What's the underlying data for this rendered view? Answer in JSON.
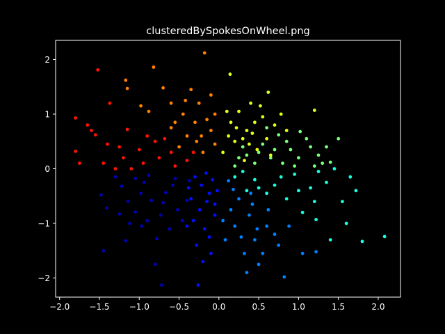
{
  "chart_data": {
    "type": "scatter",
    "title": "clusteredBySpokesOnWheel.png",
    "xlabel": "",
    "ylabel": "",
    "xlim": [
      -2.05,
      2.28
    ],
    "ylim": [
      -2.35,
      2.35
    ],
    "xticks": [
      -2.0,
      -1.5,
      -1.0,
      -0.5,
      0.0,
      0.5,
      1.0,
      1.5,
      2.0
    ],
    "xtick_labels": [
      "−2.0",
      "−1.5",
      "−1.0",
      "−0.5",
      "0.0",
      "0.5",
      "1.0",
      "1.5",
      "2.0"
    ],
    "yticks": [
      -2,
      -1,
      0,
      1,
      2
    ],
    "ytick_labels": [
      "−2",
      "−1",
      "0",
      "1",
      "2"
    ],
    "grid": false,
    "colormap": "jet",
    "cluster_count": 8,
    "point_count": 600,
    "background": "#000000",
    "foreground": "#ffffff",
    "series": [
      {
        "color": "#0000b4",
        "points": [
          [
            -0.94,
            -0.25
          ],
          [
            -0.85,
            -0.58
          ],
          [
            -1.22,
            -0.32
          ],
          [
            -0.67,
            -0.44
          ],
          [
            -0.4,
            -0.58
          ],
          [
            -0.73,
            -0.85
          ],
          [
            -1.05,
            -0.79
          ],
          [
            -0.55,
            -0.18
          ],
          [
            -0.97,
            -1.05
          ],
          [
            -1.41,
            -0.72
          ],
          [
            -0.62,
            -1.1
          ],
          [
            -0.88,
            -0.12
          ],
          [
            -1.14,
            -0.6
          ],
          [
            -0.46,
            -0.95
          ],
          [
            -0.78,
            -1.28
          ],
          [
            -1.3,
            -0.15
          ],
          [
            -0.98,
            -0.45
          ],
          [
            -0.58,
            -0.3
          ],
          [
            -1.12,
            -1.0
          ],
          [
            -0.7,
            -0.62
          ],
          [
            -1.45,
            -1.5
          ],
          [
            -1.17,
            -1.32
          ],
          [
            -0.72,
            -2.13
          ],
          [
            -0.8,
            -1.75
          ],
          [
            -0.37,
            -0.22
          ],
          [
            -1.05,
            -0.18
          ],
          [
            -1.25,
            -0.83
          ],
          [
            -1.48,
            -0.48
          ],
          [
            -0.9,
            -0.95
          ],
          [
            -0.52,
            -0.75
          ]
        ]
      },
      {
        "color": "#0010ff",
        "points": [
          [
            -0.3,
            -0.15
          ],
          [
            -0.12,
            -0.45
          ],
          [
            -0.24,
            -0.75
          ],
          [
            -0.08,
            -0.2
          ],
          [
            -0.35,
            -0.55
          ],
          [
            -0.18,
            -1.1
          ],
          [
            -0.05,
            -0.85
          ],
          [
            -0.28,
            -1.4
          ],
          [
            -0.15,
            -0.6
          ],
          [
            -0.22,
            -0.3
          ],
          [
            -0.4,
            -1.05
          ],
          [
            -0.1,
            -1.55
          ],
          [
            -0.02,
            -0.4
          ],
          [
            -0.32,
            -0.95
          ],
          [
            -0.2,
            -1.7
          ],
          [
            -0.26,
            -2.13
          ],
          [
            -0.12,
            -1.25
          ],
          [
            -0.05,
            -0.65
          ],
          [
            -0.38,
            -0.35
          ],
          [
            -0.16,
            -0.08
          ]
        ]
      },
      {
        "color": "#0080ff",
        "points": [
          [
            0.12,
            -0.22
          ],
          [
            0.25,
            -0.55
          ],
          [
            0.38,
            -0.85
          ],
          [
            0.2,
            -1.05
          ],
          [
            0.45,
            -1.3
          ],
          [
            0.6,
            -1.05
          ],
          [
            0.32,
            -1.55
          ],
          [
            0.5,
            -1.75
          ],
          [
            0.75,
            -1.4
          ],
          [
            0.82,
            -1.98
          ],
          [
            0.15,
            -0.75
          ],
          [
            0.4,
            -0.45
          ],
          [
            0.62,
            -0.75
          ],
          [
            0.28,
            -1.25
          ],
          [
            0.55,
            -1.55
          ],
          [
            0.05,
            -0.95
          ],
          [
            0.7,
            -1.2
          ],
          [
            0.35,
            -1.9
          ],
          [
            1.05,
            -1.55
          ],
          [
            1.22,
            -1.52
          ],
          [
            0.18,
            -0.38
          ],
          [
            0.48,
            -1.1
          ],
          [
            0.88,
            -1.05
          ],
          [
            0.08,
            -1.3
          ],
          [
            0.42,
            -0.65
          ]
        ]
      },
      {
        "color": "#15ffe1",
        "points": [
          [
            0.2,
            -0.15
          ],
          [
            0.45,
            -0.2
          ],
          [
            0.7,
            -0.3
          ],
          [
            0.95,
            -0.1
          ],
          [
            1.15,
            -0.35
          ],
          [
            1.35,
            -0.25
          ],
          [
            1.55,
            -0.6
          ],
          [
            1.72,
            -0.4
          ],
          [
            1.8,
            -1.33
          ],
          [
            2.08,
            -1.24
          ],
          [
            1.6,
            -1.0
          ],
          [
            1.4,
            -1.3
          ],
          [
            1.05,
            -0.8
          ],
          [
            0.85,
            -0.55
          ],
          [
            0.6,
            -0.45
          ],
          [
            1.25,
            -0.05
          ],
          [
            0.3,
            -0.05
          ],
          [
            0.5,
            -0.35
          ],
          [
            0.78,
            -0.15
          ],
          [
            1.0,
            -0.4
          ],
          [
            1.2,
            -0.6
          ],
          [
            1.45,
            0.0
          ],
          [
            0.35,
            -0.4
          ],
          [
            1.65,
            -0.15
          ],
          [
            1.22,
            -0.93
          ]
        ]
      },
      {
        "color": "#7bff7b",
        "points": [
          [
            0.35,
            0.25
          ],
          [
            0.55,
            0.45
          ],
          [
            0.75,
            0.62
          ],
          [
            0.9,
            0.35
          ],
          [
            1.1,
            0.55
          ],
          [
            1.25,
            0.25
          ],
          [
            1.35,
            0.4
          ],
          [
            1.5,
            0.55
          ],
          [
            0.65,
            0.2
          ],
          [
            0.45,
            0.1
          ],
          [
            0.8,
            0.1
          ],
          [
            1.0,
            0.2
          ],
          [
            1.2,
            0.05
          ],
          [
            0.2,
            0.05
          ],
          [
            0.6,
            0.75
          ],
          [
            1.02,
            0.68
          ],
          [
            0.85,
            0.5
          ],
          [
            1.4,
            0.12
          ],
          [
            0.3,
            0.4
          ],
          [
            0.7,
            0.35
          ],
          [
            1.15,
            0.4
          ],
          [
            0.5,
            0.3
          ],
          [
            1.3,
            0.1
          ],
          [
            0.95,
            0.05
          ],
          [
            0.25,
            0.2
          ]
        ]
      },
      {
        "color": "#e4ff13",
        "points": [
          [
            0.05,
            0.3
          ],
          [
            0.15,
            0.85
          ],
          [
            0.25,
            1.05
          ],
          [
            0.35,
            0.7
          ],
          [
            0.4,
            1.2
          ],
          [
            0.55,
            0.95
          ],
          [
            0.6,
            0.55
          ],
          [
            0.48,
            0.35
          ],
          [
            0.2,
            0.5
          ],
          [
            0.32,
            0.15
          ],
          [
            0.62,
            1.4
          ],
          [
            0.14,
            1.73
          ],
          [
            0.78,
            1.0
          ],
          [
            0.85,
            0.7
          ],
          [
            0.1,
            1.05
          ],
          [
            0.45,
            0.85
          ],
          [
            0.7,
            0.8
          ],
          [
            0.3,
            0.55
          ],
          [
            0.52,
            1.15
          ],
          [
            0.22,
            0.75
          ],
          [
            0.38,
            0.45
          ],
          [
            0.65,
            0.25
          ],
          [
            0.12,
            0.6
          ],
          [
            0.42,
            0.65
          ],
          [
            1.2,
            1.07
          ]
        ]
      },
      {
        "color": "#ff8000",
        "points": [
          [
            -0.2,
            0.3
          ],
          [
            -0.1,
            0.7
          ],
          [
            -0.3,
            0.85
          ],
          [
            -0.45,
            1.0
          ],
          [
            -0.4,
            0.6
          ],
          [
            -0.55,
            0.85
          ],
          [
            -0.25,
            1.2
          ],
          [
            -0.1,
            1.35
          ],
          [
            -0.05,
            1.0
          ],
          [
            -0.35,
            1.45
          ],
          [
            -0.6,
            1.2
          ],
          [
            -0.7,
            1.48
          ],
          [
            -0.82,
            1.86
          ],
          [
            -0.18,
            2.12
          ],
          [
            -1.17,
            1.62
          ],
          [
            -1.15,
            1.47
          ],
          [
            -0.98,
            1.15
          ],
          [
            -0.88,
            1.05
          ],
          [
            -0.28,
            0.5
          ],
          [
            -0.15,
            0.9
          ],
          [
            -0.5,
            0.4
          ],
          [
            -0.22,
            0.6
          ],
          [
            -0.6,
            0.75
          ],
          [
            -0.05,
            0.45
          ],
          [
            -0.42,
            1.25
          ]
        ]
      },
      {
        "color": "#ff1300",
        "points": [
          [
            -0.4,
            0.15
          ],
          [
            -0.6,
            0.3
          ],
          [
            -0.8,
            0.5
          ],
          [
            -1.0,
            0.35
          ],
          [
            -1.2,
            0.2
          ],
          [
            -1.4,
            0.45
          ],
          [
            -1.6,
            0.7
          ],
          [
            -1.8,
            0.93
          ],
          [
            -1.65,
            0.8
          ],
          [
            -1.55,
            0.62
          ],
          [
            -1.8,
            0.32
          ],
          [
            -1.75,
            0.1
          ],
          [
            -1.45,
            0.1
          ],
          [
            -1.3,
            0.0
          ],
          [
            -1.1,
            0.0
          ],
          [
            -0.95,
            0.1
          ],
          [
            -0.75,
            0.2
          ],
          [
            -0.55,
            0.05
          ],
          [
            -0.32,
            0.3
          ],
          [
            -1.52,
            1.81
          ],
          [
            -1.37,
            1.2
          ],
          [
            -1.15,
            0.72
          ],
          [
            -0.9,
            0.6
          ],
          [
            -0.68,
            0.55
          ],
          [
            -1.25,
            0.4
          ]
        ]
      }
    ]
  }
}
